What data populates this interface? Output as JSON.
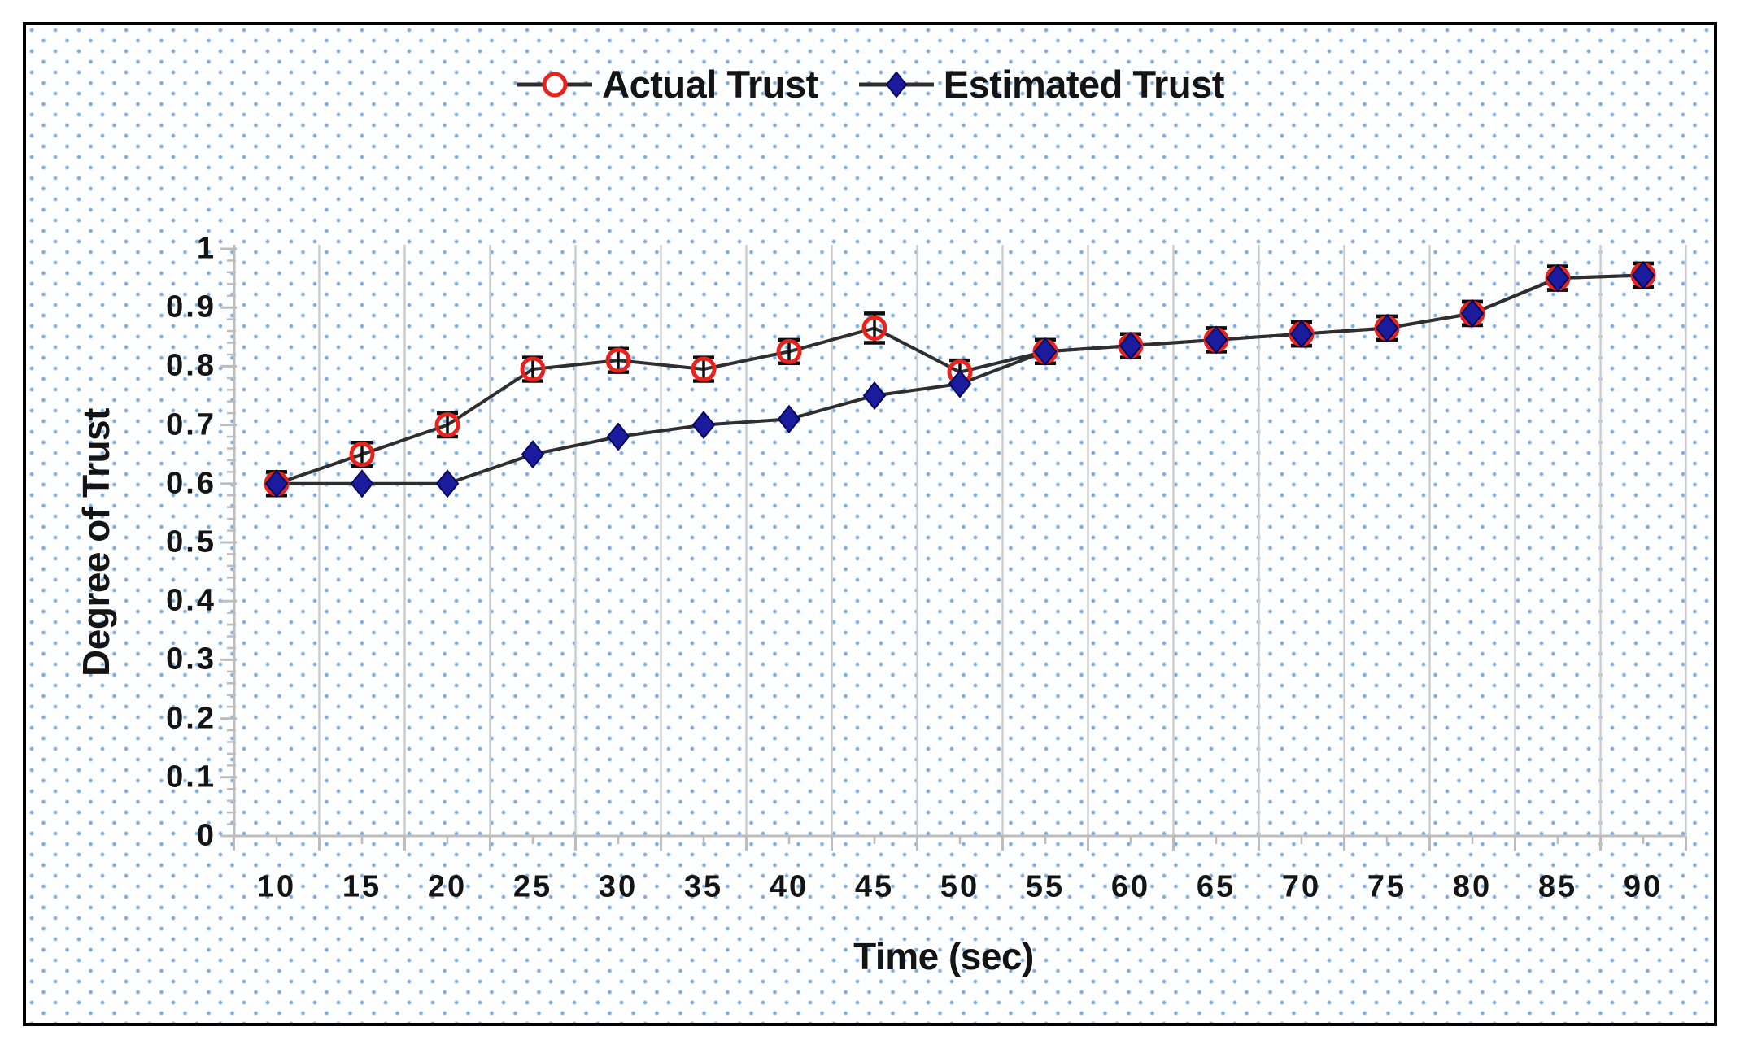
{
  "legend": {
    "items": [
      {
        "label": "Actual Trust",
        "marker": "open-circle",
        "marker_color": "#e8231d",
        "line_color": "#2e2e2e"
      },
      {
        "label": "Estimated Trust",
        "marker": "filled-diamond",
        "marker_color": "#1b1b9e",
        "line_color": "#2e2e2e"
      }
    ]
  },
  "chart_data": {
    "type": "line",
    "title": "",
    "x": [
      10,
      15,
      20,
      25,
      30,
      35,
      40,
      45,
      50,
      55,
      60,
      65,
      70,
      75,
      80,
      85,
      90
    ],
    "xlabel": "Time (sec)",
    "ylabel": "Degree of Trust",
    "ylim": [
      0,
      1
    ],
    "ytick_labels": [
      "0",
      "0.1",
      "0.2",
      "0.3",
      "0.4",
      "0.5",
      "0.6",
      "0.7",
      "0.8",
      "0.9",
      "1"
    ],
    "y_minor_step": 0.02,
    "x_minor_step": 2.5,
    "grid": "vertical-between-categories",
    "legend_position": "top-center",
    "error_bars": true,
    "series": [
      {
        "name": "Actual Trust",
        "marker": "open-circle",
        "color": "#e8231d",
        "values": [
          0.6,
          0.65,
          0.7,
          0.795,
          0.81,
          0.795,
          0.825,
          0.865,
          0.79,
          0.825,
          0.835,
          0.845,
          0.855,
          0.865,
          0.89,
          0.95,
          0.955
        ],
        "errors": [
          0.02,
          0.02,
          0.02,
          0.02,
          0.02,
          0.02,
          0.02,
          0.025,
          0.02,
          0.02,
          0.02,
          0.02,
          0.02,
          0.02,
          0.02,
          0.02,
          0.02
        ]
      },
      {
        "name": "Estimated Trust",
        "marker": "filled-diamond",
        "color": "#1b1b9e",
        "values": [
          0.6,
          0.6,
          0.6,
          0.65,
          0.68,
          0.7,
          0.71,
          0.75,
          0.77,
          0.825,
          0.835,
          0.845,
          0.855,
          0.865,
          0.89,
          0.95,
          0.955
        ],
        "errors": [
          0.02,
          0,
          0,
          0,
          0,
          0,
          0,
          0,
          0,
          0.02,
          0.02,
          0.02,
          0.02,
          0.02,
          0.02,
          0.02,
          0.02
        ]
      }
    ],
    "colors": {
      "grid": "#cdcdcd",
      "axis": "#bdbdbd",
      "series_line": "#2e2e2e",
      "error_bar": "#0d0d0d",
      "text": "#141414",
      "background_dots": "#78a5dc",
      "frame_border": "#000000"
    }
  }
}
